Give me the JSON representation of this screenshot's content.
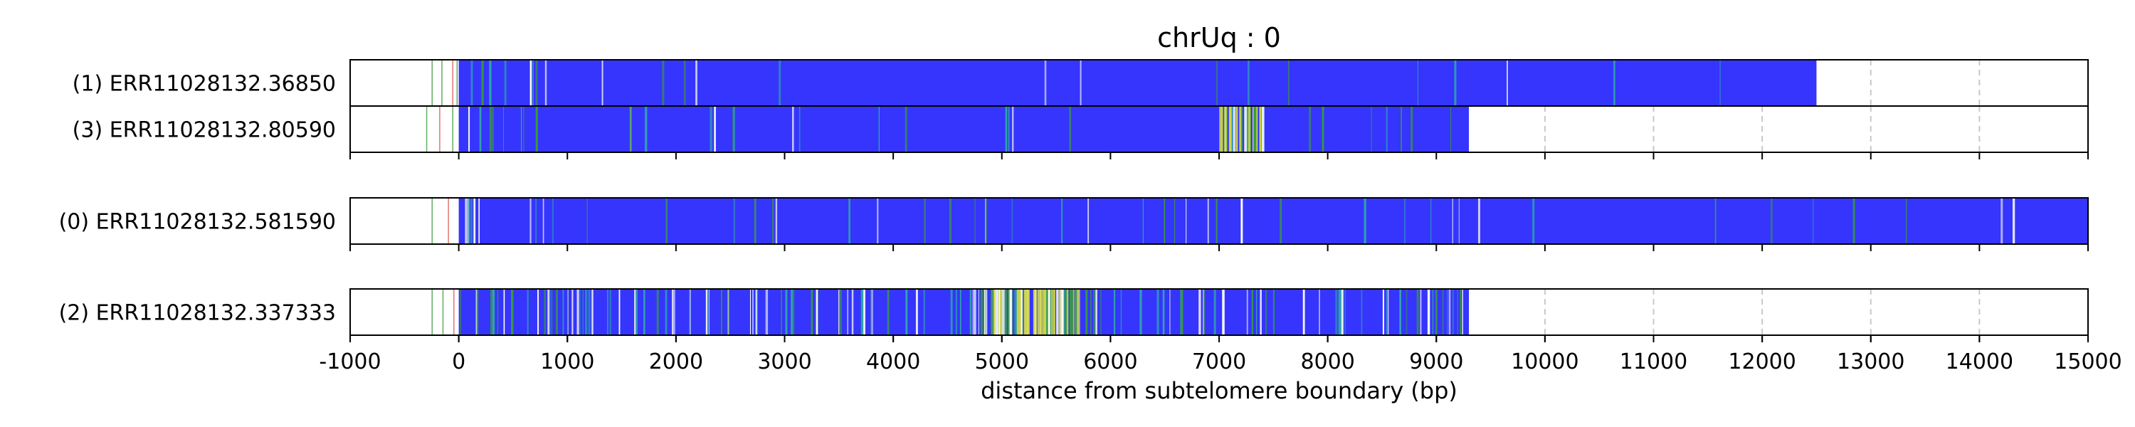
{
  "chart_data": {
    "type": "heatmap",
    "title": "chrUq : 0",
    "xlabel": "distance from subtelomere boundary (bp)",
    "xlim": [
      -1000,
      15000
    ],
    "xticks": [
      "-1000",
      "0",
      "1000",
      "2000",
      "3000",
      "4000",
      "5000",
      "6000",
      "7000",
      "8000",
      "9000",
      "10000",
      "11000",
      "12000",
      "13000",
      "14000",
      "15000"
    ],
    "grid": "vertical dashed",
    "colors": {
      "base": "#3535fd",
      "teal": "#2fa8a8",
      "green": "#3a9a3a",
      "yellow": "#cfd742",
      "red": "#d9534f",
      "white": "#ffffff",
      "grid": "#c8c8c8"
    },
    "reads": [
      {
        "label": "(1) ERR11028132.36850",
        "group": 0,
        "start": 0,
        "end": 12500,
        "lead_marks": [
          {
            "x": -250,
            "c": "green"
          },
          {
            "x": -160,
            "c": "green"
          },
          {
            "x": -60,
            "c": "red"
          },
          {
            "x": -20,
            "c": "green"
          }
        ],
        "profile": [
          [
            0,
            1000,
            0.8
          ],
          [
            1000,
            3000,
            0.25
          ],
          [
            3000,
            12500,
            0.1
          ]
        ],
        "dense": []
      },
      {
        "label": "(3) ERR11028132.80590",
        "group": 0,
        "start": 0,
        "end": 9300,
        "lead_marks": [
          {
            "x": -300,
            "c": "green"
          },
          {
            "x": -180,
            "c": "red"
          },
          {
            "x": -60,
            "c": "green"
          }
        ],
        "profile": [
          [
            0,
            1000,
            0.8
          ],
          [
            1000,
            7000,
            0.25
          ],
          [
            7000,
            7400,
            2.5
          ],
          [
            7400,
            9300,
            0.35
          ]
        ],
        "dense": [
          {
            "from": 7000,
            "to": 7400,
            "yellow": true
          }
        ]
      },
      {
        "label": "(0) ERR11028132.581590",
        "group": 1,
        "start": 0,
        "end": 15000,
        "lead_marks": [
          {
            "x": -250,
            "c": "green"
          },
          {
            "x": -100,
            "c": "red"
          }
        ],
        "profile": [
          [
            0,
            1000,
            1.0
          ],
          [
            1000,
            5000,
            0.35
          ],
          [
            5000,
            10000,
            0.35
          ],
          [
            10000,
            15000,
            0.15
          ]
        ],
        "dense": []
      },
      {
        "label": "(2) ERR11028132.337333",
        "group": 2,
        "start": 0,
        "end": 9300,
        "lead_marks": [
          {
            "x": -250,
            "c": "green"
          },
          {
            "x": -150,
            "c": "green"
          },
          {
            "x": -50,
            "c": "red"
          }
        ],
        "profile": [
          [
            0,
            1000,
            1.8
          ],
          [
            1000,
            4500,
            1.5
          ],
          [
            4500,
            5900,
            2.6
          ],
          [
            5900,
            8500,
            1.2
          ],
          [
            8500,
            9300,
            2.4
          ]
        ],
        "dense": [
          {
            "from": 4800,
            "to": 5700,
            "yellow": true
          }
        ]
      }
    ]
  }
}
